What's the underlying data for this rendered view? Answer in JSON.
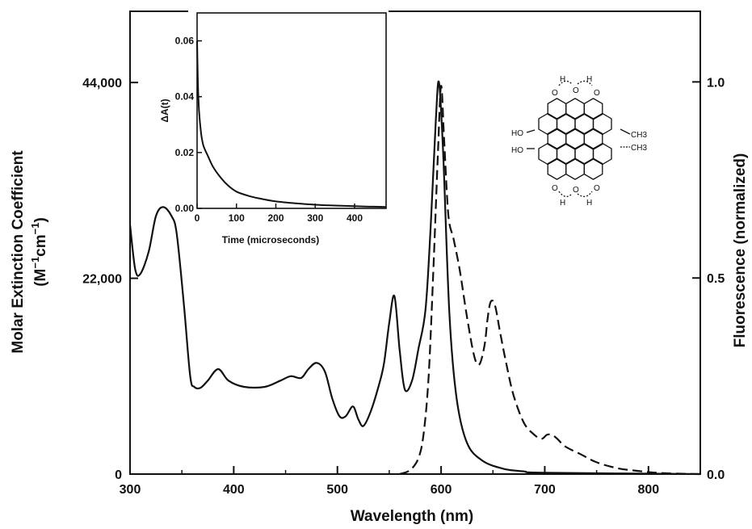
{
  "chart_data": [
    {
      "type": "line",
      "xlabel": "Wavelength (nm)",
      "ylabel": "Molar Extinction Coefficient",
      "ylabel_units": {
        "open": "(M",
        "sup1": "−1",
        "mid": "cm",
        "sup2": "−1",
        "close": ")"
      },
      "y2label": "Fluorescence (normalized)",
      "xlim": [
        300,
        850
      ],
      "ylim": [
        0,
        52000
      ],
      "y2lim": [
        0,
        1.18
      ],
      "x_ticks": [
        300,
        400,
        500,
        600,
        700,
        800
      ],
      "y_ticks": [
        0,
        22000,
        44000
      ],
      "y_tick_labels": [
        "0",
        "22,000",
        "44,000"
      ],
      "y2_ticks": [
        0.0,
        0.5,
        1.0
      ],
      "y2_tick_labels": [
        "0.0",
        "0.5",
        "1.0"
      ],
      "grid": false,
      "series": [
        {
          "style": "solid",
          "axis": "left",
          "x": [
            300,
            305,
            310,
            318,
            325,
            332,
            340,
            345,
            352,
            358,
            362,
            368,
            375,
            385,
            395,
            410,
            430,
            445,
            455,
            465,
            472,
            480,
            488,
            495,
            502,
            508,
            515,
            520,
            525,
            532,
            540,
            545,
            550,
            555,
            560,
            565,
            572,
            578,
            585,
            590,
            595,
            598,
            602,
            608,
            615,
            625,
            640,
            660,
            680,
            700,
            850
          ],
          "y": [
            28000,
            23000,
            22500,
            25000,
            29000,
            30000,
            29000,
            27000,
            19000,
            11000,
            9800,
            9700,
            10500,
            11800,
            10500,
            9800,
            9800,
            10500,
            11000,
            10800,
            11800,
            12500,
            11500,
            8500,
            6500,
            6500,
            7600,
            6200,
            5400,
            7000,
            10000,
            12500,
            17000,
            20000,
            14000,
            9500,
            10500,
            14000,
            18500,
            28000,
            40000,
            44000,
            36000,
            18000,
            8500,
            3500,
            1500,
            600,
            300,
            150,
            0
          ]
        },
        {
          "style": "dashed",
          "axis": "right",
          "x": [
            560,
            570,
            578,
            583,
            588,
            593,
            597,
            600,
            603,
            607,
            612,
            618,
            625,
            632,
            637,
            642,
            645,
            648,
            652,
            657,
            663,
            670,
            680,
            690,
            697,
            702,
            707,
            712,
            720,
            735,
            750,
            770,
            790,
            810,
            830,
            850
          ],
          "y": [
            0.0,
            0.01,
            0.04,
            0.1,
            0.25,
            0.55,
            0.82,
            0.99,
            0.85,
            0.66,
            0.6,
            0.52,
            0.4,
            0.3,
            0.28,
            0.33,
            0.4,
            0.44,
            0.43,
            0.36,
            0.28,
            0.2,
            0.13,
            0.1,
            0.09,
            0.1,
            0.1,
            0.09,
            0.07,
            0.05,
            0.03,
            0.015,
            0.008,
            0.003,
            0.001,
            0.0
          ]
        }
      ]
    },
    {
      "type": "line",
      "inset": true,
      "xlabel": "Time (microseconds)",
      "ylabel": "ΔA(t)",
      "xlim": [
        0,
        480
      ],
      "ylim": [
        0,
        0.07
      ],
      "x_ticks": [
        0,
        100,
        200,
        300,
        400
      ],
      "y_ticks": [
        0.0,
        0.02,
        0.04,
        0.06
      ],
      "y_tick_labels": [
        "0.00",
        "0.02",
        "0.04",
        "0.06"
      ],
      "series": [
        {
          "style": "solid",
          "x": [
            0,
            2,
            5,
            10,
            15,
            20,
            25,
            30,
            40,
            60,
            80,
            100,
            130,
            160,
            200,
            250,
            300,
            350,
            400,
            450,
            480
          ],
          "y": [
            0.06,
            0.045,
            0.035,
            0.027,
            0.023,
            0.021,
            0.0195,
            0.018,
            0.015,
            0.011,
            0.008,
            0.006,
            0.0045,
            0.0035,
            0.0025,
            0.0018,
            0.0013,
            0.001,
            0.0008,
            0.0006,
            0.0005
          ]
        }
      ]
    }
  ],
  "molecule": {
    "labels": {
      "ho_top": "HO",
      "ho_bottom": "HO",
      "ch3_top": "CH3",
      "ch3_bottom": "CH3",
      "o_carbonyl_top": "O",
      "o_carbonyl_bottom": "O",
      "h_bond": "H",
      "o_hydroxyl": "O"
    }
  }
}
